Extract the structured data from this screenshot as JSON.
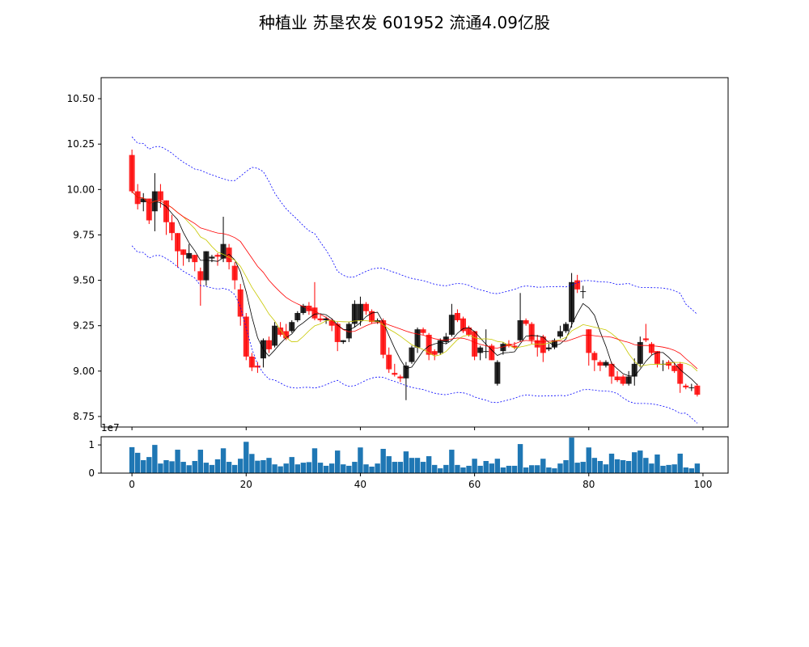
{
  "chart_data": {
    "type": "candlestick",
    "title": "种植业 苏垦农发 601952 流通4.09亿股",
    "colors": {
      "down": "#ff0000",
      "up": "#000000",
      "ma5": "#000000",
      "ma10": "#c8c800",
      "ma20": "#ff0000",
      "boll": "#0000ff",
      "volume": "#1f77b4"
    },
    "xlim": [
      -5.4,
      104.4
    ],
    "ylim": [
      8.692,
      10.616
    ],
    "vol_ylim": [
      0,
      1.29
    ],
    "x_ticks": [
      0,
      20,
      40,
      60,
      80,
      100
    ],
    "x_tick_labels": [
      "0",
      "20",
      "40",
      "60",
      "80",
      "100"
    ],
    "y_ticks": [
      8.75,
      9.0,
      9.25,
      9.5,
      9.75,
      10.0,
      10.25,
      10.5
    ],
    "y_tick_labels": [
      "8.75",
      "9.00",
      "9.25",
      "9.50",
      "9.75",
      "10.00",
      "10.25",
      "10.50"
    ],
    "vol_ticks": [
      0,
      1
    ],
    "vol_tick_labels": [
      "0",
      "1"
    ],
    "vol_offset_label": "1e7",
    "ohlc": [
      [
        10.19,
        10.22,
        9.98,
        9.99
      ],
      [
        9.99,
        10.03,
        9.89,
        9.92
      ],
      [
        9.93,
        9.98,
        9.88,
        9.95
      ],
      [
        9.95,
        9.95,
        9.81,
        9.83
      ],
      [
        9.88,
        10.09,
        9.77,
        9.99
      ],
      [
        9.99,
        10.03,
        9.9,
        9.94
      ],
      [
        9.94,
        9.94,
        9.75,
        9.82
      ],
      [
        9.82,
        9.86,
        9.72,
        9.76
      ],
      [
        9.76,
        9.76,
        9.57,
        9.66
      ],
      [
        9.67,
        9.67,
        9.58,
        9.64
      ],
      [
        9.62,
        9.7,
        9.6,
        9.65
      ],
      [
        9.64,
        9.64,
        9.55,
        9.6
      ],
      [
        9.55,
        9.57,
        9.36,
        9.5
      ],
      [
        9.5,
        9.66,
        9.47,
        9.66
      ],
      [
        9.62,
        9.64,
        9.6,
        9.63
      ],
      [
        9.64,
        9.65,
        9.58,
        9.63
      ],
      [
        9.62,
        9.85,
        9.6,
        9.7
      ],
      [
        9.68,
        9.7,
        9.56,
        9.6
      ],
      [
        9.58,
        9.6,
        9.45,
        9.5
      ],
      [
        9.45,
        9.48,
        9.25,
        9.3
      ],
      [
        9.3,
        9.32,
        9.06,
        9.08
      ],
      [
        9.08,
        9.1,
        9.0,
        9.02
      ],
      [
        9.03,
        9.05,
        8.99,
        9.02
      ],
      [
        9.07,
        9.18,
        9.02,
        9.17
      ],
      [
        9.17,
        9.19,
        9.1,
        9.12
      ],
      [
        9.14,
        9.27,
        9.13,
        9.25
      ],
      [
        9.24,
        9.27,
        9.19,
        9.2
      ],
      [
        9.22,
        9.26,
        9.17,
        9.18
      ],
      [
        9.22,
        9.28,
        9.21,
        9.27
      ],
      [
        9.28,
        9.33,
        9.27,
        9.32
      ],
      [
        9.32,
        9.37,
        9.31,
        9.36
      ],
      [
        9.36,
        9.38,
        9.31,
        9.33
      ],
      [
        9.35,
        9.49,
        9.28,
        9.29
      ],
      [
        9.29,
        9.31,
        9.27,
        9.28
      ],
      [
        9.28,
        9.3,
        9.26,
        9.29
      ],
      [
        9.28,
        9.29,
        9.22,
        9.25
      ],
      [
        9.26,
        9.27,
        9.11,
        9.16
      ],
      [
        9.16,
        9.17,
        9.15,
        9.17
      ],
      [
        9.18,
        9.27,
        9.16,
        9.26
      ],
      [
        9.26,
        9.39,
        9.24,
        9.37
      ],
      [
        9.28,
        9.41,
        9.25,
        9.37
      ],
      [
        9.37,
        9.38,
        9.31,
        9.33
      ],
      [
        9.33,
        9.34,
        9.26,
        9.27
      ],
      [
        9.27,
        9.29,
        9.26,
        9.28
      ],
      [
        9.28,
        9.29,
        9.07,
        9.09
      ],
      [
        9.09,
        9.13,
        8.99,
        9.01
      ],
      [
        8.99,
        9.04,
        8.97,
        8.98
      ],
      [
        8.97,
        8.98,
        8.94,
        8.96
      ],
      [
        8.96,
        9.05,
        8.84,
        9.03
      ],
      [
        9.05,
        9.14,
        9.04,
        9.13
      ],
      [
        9.13,
        9.24,
        9.1,
        9.23
      ],
      [
        9.23,
        9.24,
        9.2,
        9.21
      ],
      [
        9.2,
        9.21,
        9.06,
        9.09
      ],
      [
        9.11,
        9.12,
        9.06,
        9.09
      ],
      [
        9.1,
        9.18,
        9.09,
        9.17
      ],
      [
        9.16,
        9.21,
        9.15,
        9.19
      ],
      [
        9.2,
        9.37,
        9.19,
        9.31
      ],
      [
        9.32,
        9.34,
        9.27,
        9.28
      ],
      [
        9.29,
        9.3,
        9.21,
        9.22
      ],
      [
        9.24,
        9.25,
        9.19,
        9.2
      ],
      [
        9.22,
        9.22,
        9.06,
        9.08
      ],
      [
        9.1,
        9.14,
        9.06,
        9.13
      ],
      [
        9.11,
        9.23,
        9.07,
        9.11
      ],
      [
        9.14,
        9.15,
        9.06,
        9.06
      ],
      [
        8.93,
        9.06,
        8.92,
        9.05
      ],
      [
        9.11,
        9.16,
        9.09,
        9.15
      ],
      [
        9.15,
        9.17,
        9.13,
        9.14
      ],
      [
        9.14,
        9.16,
        9.12,
        9.13
      ],
      [
        9.17,
        9.43,
        9.16,
        9.28
      ],
      [
        9.28,
        9.29,
        9.25,
        9.26
      ],
      [
        9.26,
        9.27,
        9.15,
        9.17
      ],
      [
        9.17,
        9.2,
        9.08,
        9.13
      ],
      [
        9.19,
        9.2,
        9.05,
        9.1
      ],
      [
        9.12,
        9.15,
        9.11,
        9.13
      ],
      [
        9.13,
        9.18,
        9.12,
        9.17
      ],
      [
        9.19,
        9.25,
        9.18,
        9.22
      ],
      [
        9.22,
        9.27,
        9.21,
        9.26
      ],
      [
        9.27,
        9.54,
        9.24,
        9.49
      ],
      [
        9.5,
        9.53,
        9.43,
        9.45
      ],
      [
        9.44,
        9.47,
        9.4,
        9.44
      ],
      [
        9.23,
        9.23,
        9.03,
        9.1
      ],
      [
        9.1,
        9.11,
        9.0,
        9.06
      ],
      [
        9.05,
        9.06,
        9.0,
        9.03
      ],
      [
        9.03,
        9.06,
        9.02,
        9.05
      ],
      [
        9.04,
        9.05,
        8.93,
        8.97
      ],
      [
        8.97,
        9.0,
        8.94,
        8.95
      ],
      [
        8.97,
        8.98,
        8.92,
        8.93
      ],
      [
        8.93,
        9.0,
        8.92,
        8.97
      ],
      [
        8.97,
        9.07,
        8.92,
        9.04
      ],
      [
        9.04,
        9.19,
        9.02,
        9.16
      ],
      [
        9.18,
        9.26,
        9.16,
        9.17
      ],
      [
        9.15,
        9.16,
        9.09,
        9.1
      ],
      [
        9.11,
        9.11,
        9.02,
        9.04
      ],
      [
        9.04,
        9.06,
        9.0,
        9.04
      ],
      [
        9.05,
        9.06,
        9.01,
        9.03
      ],
      [
        9.03,
        9.05,
        8.99,
        9.0
      ],
      [
        9.04,
        9.05,
        8.88,
        8.93
      ],
      [
        8.92,
        8.93,
        8.9,
        8.91
      ],
      [
        8.91,
        8.93,
        8.89,
        8.91
      ],
      [
        8.92,
        8.93,
        8.86,
        8.87
      ]
    ],
    "volume_1e7": [
      0.92,
      0.72,
      0.46,
      0.57,
      1.0,
      0.34,
      0.46,
      0.42,
      0.83,
      0.4,
      0.28,
      0.43,
      0.83,
      0.37,
      0.29,
      0.49,
      0.88,
      0.4,
      0.29,
      0.51,
      1.11,
      0.68,
      0.44,
      0.46,
      0.54,
      0.31,
      0.24,
      0.34,
      0.57,
      0.31,
      0.37,
      0.39,
      0.88,
      0.37,
      0.26,
      0.34,
      0.8,
      0.31,
      0.26,
      0.4,
      0.91,
      0.31,
      0.23,
      0.34,
      0.86,
      0.6,
      0.4,
      0.4,
      0.77,
      0.54,
      0.54,
      0.4,
      0.6,
      0.29,
      0.17,
      0.29,
      0.83,
      0.29,
      0.2,
      0.26,
      0.51,
      0.26,
      0.43,
      0.34,
      0.51,
      0.2,
      0.26,
      0.26,
      1.03,
      0.2,
      0.28,
      0.28,
      0.51,
      0.2,
      0.17,
      0.34,
      0.46,
      1.26,
      0.37,
      0.4,
      0.91,
      0.54,
      0.43,
      0.31,
      0.69,
      0.49,
      0.46,
      0.43,
      0.74,
      0.8,
      0.54,
      0.34,
      0.66,
      0.26,
      0.29,
      0.31,
      0.69,
      0.2,
      0.17,
      0.34
    ]
  }
}
